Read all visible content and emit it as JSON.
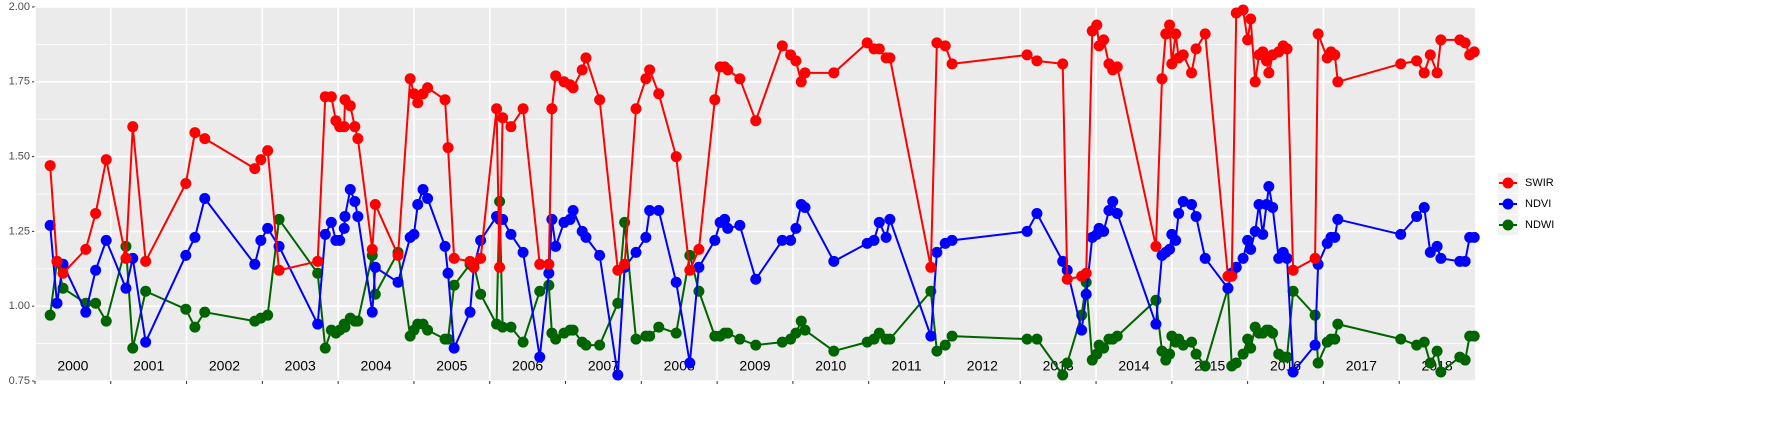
{
  "chart_data": {
    "type": "line",
    "x": [
      2000.2,
      2000.29,
      2000.37,
      2000.67,
      2000.8,
      2000.94,
      2001.2,
      2001.29,
      2001.46,
      2001.99,
      2002.11,
      2002.24,
      2002.9,
      2002.98,
      2003.07,
      2003.22,
      2003.73,
      2003.83,
      2003.91,
      2003.97,
      2004.02,
      2004.08,
      2004.09,
      2004.16,
      2004.22,
      2004.26,
      2004.45,
      2004.49,
      2004.79,
      2004.95,
      2005.0,
      2005.05,
      2005.12,
      2005.18,
      2005.41,
      2005.45,
      2005.53,
      2005.74,
      2005.79,
      2005.88,
      2006.09,
      2006.13,
      2006.17,
      2006.28,
      2006.44,
      2006.66,
      2006.78,
      2006.82,
      2006.87,
      2006.98,
      2007.06,
      2007.1,
      2007.22,
      2007.27,
      2007.45,
      2007.69,
      2007.78,
      2007.93,
      2008.06,
      2008.11,
      2008.23,
      2008.46,
      2008.64,
      2008.76,
      2008.97,
      2009.04,
      2009.1,
      2009.14,
      2009.3,
      2009.51,
      2009.86,
      2009.97,
      2010.04,
      2010.11,
      2010.16,
      2010.54,
      2010.98,
      2011.07,
      2011.14,
      2011.23,
      2011.28,
      2011.82,
      2011.9,
      2012.01,
      2012.1,
      2013.09,
      2013.22,
      2013.56,
      2013.62,
      2013.81,
      2013.87,
      2013.95,
      2014.01,
      2014.04,
      2014.1,
      2014.17,
      2014.22,
      2014.28,
      2014.79,
      2014.87,
      2014.92,
      2014.97,
      2015.0,
      2015.05,
      2015.09,
      2015.15,
      2015.26,
      2015.32,
      2015.44,
      2015.74,
      2015.79,
      2015.85,
      2015.94,
      2016.0,
      2016.04,
      2016.1,
      2016.15,
      2016.2,
      2016.25,
      2016.28,
      2016.33,
      2016.41,
      2016.47,
      2016.52,
      2016.6,
      2016.89,
      2016.93,
      2017.05,
      2017.1,
      2017.15,
      2017.19,
      2018.02,
      2018.23,
      2018.33,
      2018.41,
      2018.5,
      2018.55,
      2018.8,
      2018.87,
      2018.93,
      2018.99
    ],
    "series": [
      {
        "name": "SWIR",
        "color": "#ff0000",
        "values": [
          1.47,
          1.15,
          1.11,
          1.19,
          1.31,
          1.49,
          1.16,
          1.6,
          1.15,
          1.41,
          1.58,
          1.56,
          1.46,
          1.49,
          1.52,
          1.12,
          1.15,
          1.7,
          1.7,
          1.62,
          1.6,
          1.6,
          1.69,
          1.67,
          1.6,
          1.56,
          1.19,
          1.34,
          1.17,
          1.76,
          1.71,
          1.68,
          1.71,
          1.73,
          1.69,
          1.53,
          1.16,
          1.15,
          1.13,
          1.16,
          1.66,
          1.13,
          1.63,
          1.6,
          1.66,
          1.14,
          1.14,
          1.66,
          1.77,
          1.75,
          1.74,
          1.73,
          1.79,
          1.83,
          1.69,
          1.12,
          1.14,
          1.66,
          1.76,
          1.79,
          1.71,
          1.5,
          1.12,
          1.19,
          1.69,
          1.8,
          1.8,
          1.79,
          1.76,
          1.62,
          1.87,
          1.84,
          1.82,
          1.75,
          1.78,
          1.78,
          1.88,
          1.86,
          1.86,
          1.83,
          1.83,
          1.13,
          1.88,
          1.87,
          1.81,
          1.84,
          1.82,
          1.81,
          1.09,
          1.1,
          1.11,
          1.92,
          1.94,
          1.87,
          1.89,
          1.81,
          1.79,
          1.8,
          1.2,
          1.76,
          1.91,
          1.94,
          1.81,
          1.91,
          1.83,
          1.84,
          1.78,
          1.86,
          1.91,
          1.1,
          1.1,
          1.98,
          1.99,
          1.89,
          1.96,
          1.75,
          1.84,
          1.85,
          1.82,
          1.78,
          1.84,
          1.85,
          1.87,
          1.86,
          1.12,
          1.16,
          1.91,
          1.83,
          1.85,
          1.84,
          1.75,
          1.81,
          1.82,
          1.78,
          1.84,
          1.78,
          1.89,
          1.89,
          1.88,
          1.84,
          1.85
        ]
      },
      {
        "name": "NDVI",
        "color": "#0000ff",
        "values": [
          1.27,
          1.01,
          1.14,
          0.98,
          1.12,
          1.22,
          1.06,
          1.16,
          0.88,
          1.17,
          1.23,
          1.36,
          1.14,
          1.22,
          1.26,
          1.2,
          0.94,
          1.24,
          1.28,
          1.22,
          1.22,
          1.26,
          1.3,
          1.39,
          1.35,
          1.3,
          0.98,
          1.13,
          1.08,
          1.23,
          1.24,
          1.34,
          1.39,
          1.36,
          1.2,
          1.11,
          0.86,
          0.98,
          1.13,
          1.22,
          1.3,
          1.29,
          1.29,
          1.24,
          1.18,
          0.83,
          1.11,
          1.29,
          1.2,
          1.28,
          1.29,
          1.32,
          1.25,
          1.23,
          1.17,
          0.77,
          1.13,
          1.18,
          1.23,
          1.32,
          1.32,
          1.08,
          0.81,
          1.13,
          1.22,
          1.28,
          1.29,
          1.26,
          1.27,
          1.09,
          1.22,
          1.22,
          1.26,
          1.34,
          1.33,
          1.15,
          1.21,
          1.22,
          1.28,
          1.23,
          1.29,
          0.9,
          1.18,
          1.21,
          1.22,
          1.25,
          1.31,
          1.15,
          1.12,
          0.92,
          1.04,
          1.23,
          1.24,
          1.26,
          1.25,
          1.32,
          1.35,
          1.31,
          0.94,
          1.17,
          1.18,
          1.19,
          1.24,
          1.22,
          1.31,
          1.35,
          1.34,
          1.3,
          1.16,
          1.06,
          1.11,
          1.13,
          1.16,
          1.22,
          1.19,
          1.25,
          1.34,
          1.24,
          1.34,
          1.4,
          1.33,
          1.16,
          1.18,
          1.16,
          0.78,
          0.87,
          1.14,
          1.21,
          1.23,
          1.23,
          1.29,
          1.24,
          1.3,
          1.33,
          1.18,
          1.2,
          1.16,
          1.15,
          1.15,
          1.23,
          1.23
        ]
      },
      {
        "name": "NDWI",
        "color": "#006400",
        "values": [
          0.97,
          1.15,
          1.06,
          1.01,
          1.01,
          0.95,
          1.2,
          0.86,
          1.05,
          0.99,
          0.93,
          0.98,
          0.95,
          0.96,
          0.97,
          1.29,
          1.11,
          0.86,
          0.92,
          0.91,
          0.92,
          0.94,
          0.93,
          0.96,
          0.95,
          0.95,
          1.17,
          1.04,
          1.18,
          0.9,
          0.92,
          0.94,
          0.94,
          0.92,
          0.89,
          0.89,
          1.07,
          1.14,
          1.14,
          1.04,
          0.94,
          1.35,
          0.93,
          0.93,
          0.88,
          1.05,
          1.07,
          0.91,
          0.89,
          0.91,
          0.92,
          0.92,
          0.88,
          0.87,
          0.87,
          1.01,
          1.28,
          0.89,
          0.9,
          0.9,
          0.93,
          0.91,
          1.17,
          1.05,
          0.9,
          0.9,
          0.91,
          0.91,
          0.89,
          0.87,
          0.88,
          0.89,
          0.91,
          0.95,
          0.92,
          0.85,
          0.88,
          0.89,
          0.91,
          0.89,
          0.89,
          1.05,
          0.85,
          0.87,
          0.9,
          0.89,
          0.89,
          0.77,
          0.81,
          0.97,
          1.08,
          0.82,
          0.84,
          0.87,
          0.86,
          0.89,
          0.89,
          0.9,
          1.02,
          0.85,
          0.82,
          0.84,
          0.9,
          0.88,
          0.89,
          0.87,
          0.88,
          0.84,
          0.8,
          1.06,
          0.8,
          0.81,
          0.84,
          0.89,
          0.86,
          0.93,
          0.91,
          0.91,
          0.92,
          0.92,
          0.91,
          0.84,
          0.83,
          0.83,
          1.05,
          0.97,
          0.81,
          0.88,
          0.89,
          0.89,
          0.94,
          0.89,
          0.87,
          0.88,
          0.81,
          0.85,
          0.78,
          0.83,
          0.82,
          0.9,
          0.9
        ]
      }
    ],
    "xlim": [
      2000,
      2019
    ],
    "xticks": [
      2000,
      2001,
      2002,
      2003,
      2004,
      2005,
      2006,
      2007,
      2008,
      2009,
      2010,
      2011,
      2012,
      2013,
      2014,
      2015,
      2016,
      2017,
      2018
    ],
    "ylim": [
      0.75,
      2.0
    ],
    "yticks": [
      0.75,
      {
        "value": 1.0,
        "label": "1.00"
      },
      1.25,
      {
        "value": 1.5,
        "label": "1.50"
      },
      1.75,
      {
        "value": 2.0,
        "label": "2.00"
      }
    ],
    "grid": true
  }
}
